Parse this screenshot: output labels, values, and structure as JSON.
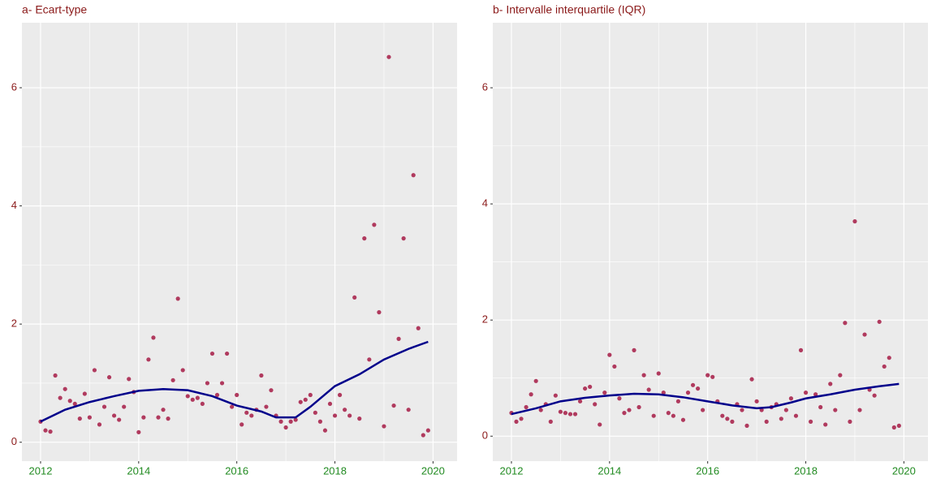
{
  "chart_data": [
    {
      "type": "scatter",
      "title": "a- Ecart-type",
      "x": [
        2012.0,
        2012.1,
        2012.2,
        2012.3,
        2012.4,
        2012.5,
        2012.6,
        2012.7,
        2012.8,
        2012.9,
        2013.0,
        2013.1,
        2013.2,
        2013.3,
        2013.4,
        2013.5,
        2013.6,
        2013.7,
        2013.8,
        2013.9,
        2014.0,
        2014.1,
        2014.2,
        2014.3,
        2014.4,
        2014.5,
        2014.6,
        2014.7,
        2014.8,
        2014.9,
        2015.0,
        2015.1,
        2015.2,
        2015.3,
        2015.4,
        2015.5,
        2015.6,
        2015.7,
        2015.8,
        2015.9,
        2016.0,
        2016.1,
        2016.2,
        2016.3,
        2016.4,
        2016.5,
        2016.6,
        2016.7,
        2016.8,
        2016.9,
        2017.0,
        2017.1,
        2017.2,
        2017.3,
        2017.4,
        2017.5,
        2017.6,
        2017.7,
        2017.8,
        2017.9,
        2018.0,
        2018.1,
        2018.2,
        2018.3,
        2018.4,
        2018.5,
        2018.6,
        2018.7,
        2018.8,
        2018.9,
        2019.0,
        2019.1,
        2019.2,
        2019.3,
        2019.4,
        2019.5,
        2019.6,
        2019.7,
        2019.8,
        2019.9
      ],
      "values": [
        0.35,
        0.2,
        0.18,
        1.13,
        0.75,
        0.9,
        0.7,
        0.65,
        0.4,
        0.82,
        0.42,
        1.22,
        0.3,
        0.6,
        1.1,
        0.45,
        0.38,
        0.6,
        1.07,
        0.85,
        0.17,
        0.42,
        1.4,
        1.77,
        0.42,
        0.55,
        0.4,
        1.05,
        2.43,
        1.22,
        0.78,
        0.72,
        0.75,
        0.65,
        1.0,
        1.5,
        0.8,
        1.0,
        1.5,
        0.6,
        0.8,
        0.3,
        0.5,
        0.45,
        0.55,
        1.13,
        0.6,
        0.88,
        0.45,
        0.35,
        0.25,
        0.35,
        0.38,
        0.68,
        0.72,
        0.8,
        0.5,
        0.35,
        0.2,
        0.65,
        0.45,
        0.8,
        0.55,
        0.45,
        2.45,
        0.4,
        3.45,
        1.4,
        3.68,
        2.2,
        0.27,
        6.52,
        0.62,
        1.75,
        3.45,
        0.55,
        4.52,
        1.93,
        0.12,
        0.2
      ],
      "color": "#b03a5e",
      "trend_x": [
        2012.0,
        2012.5,
        2013.0,
        2013.5,
        2014.0,
        2014.5,
        2015.0,
        2015.5,
        2016.0,
        2016.5,
        2016.8,
        2017.2,
        2017.5,
        2018.0,
        2018.5,
        2019.0,
        2019.5,
        2019.9
      ],
      "trend_values": [
        0.35,
        0.55,
        0.68,
        0.78,
        0.87,
        0.9,
        0.88,
        0.78,
        0.62,
        0.52,
        0.42,
        0.42,
        0.6,
        0.95,
        1.15,
        1.4,
        1.58,
        1.7
      ],
      "trend_color": "#00008b",
      "xlim": [
        2011.62,
        2020.49
      ],
      "ylim": [
        -0.32,
        7.1
      ],
      "xticks": [
        2012,
        2014,
        2016,
        2018,
        2020
      ],
      "yticks": [
        0,
        2,
        4,
        6
      ],
      "grid": true
    },
    {
      "type": "scatter",
      "title": "b- Intervalle interquartile (IQR)",
      "x": [
        2012.0,
        2012.1,
        2012.2,
        2012.3,
        2012.4,
        2012.5,
        2012.6,
        2012.7,
        2012.8,
        2012.9,
        2013.0,
        2013.1,
        2013.2,
        2013.3,
        2013.4,
        2013.5,
        2013.6,
        2013.7,
        2013.8,
        2013.9,
        2014.0,
        2014.1,
        2014.2,
        2014.3,
        2014.4,
        2014.5,
        2014.6,
        2014.7,
        2014.8,
        2014.9,
        2015.0,
        2015.1,
        2015.2,
        2015.3,
        2015.4,
        2015.5,
        2015.6,
        2015.7,
        2015.8,
        2015.9,
        2016.0,
        2016.1,
        2016.2,
        2016.3,
        2016.4,
        2016.5,
        2016.6,
        2016.7,
        2016.8,
        2016.9,
        2017.0,
        2017.1,
        2017.2,
        2017.3,
        2017.4,
        2017.5,
        2017.6,
        2017.7,
        2017.8,
        2017.9,
        2018.0,
        2018.1,
        2018.2,
        2018.3,
        2018.4,
        2018.5,
        2018.6,
        2018.7,
        2018.8,
        2018.9,
        2019.0,
        2019.1,
        2019.2,
        2019.3,
        2019.4,
        2019.5,
        2019.6,
        2019.7,
        2019.8,
        2019.9
      ],
      "values": [
        0.4,
        0.25,
        0.3,
        0.5,
        0.72,
        0.95,
        0.45,
        0.55,
        0.25,
        0.7,
        0.42,
        0.4,
        0.38,
        0.38,
        0.6,
        0.82,
        0.85,
        0.55,
        0.2,
        0.75,
        1.4,
        1.2,
        0.65,
        0.4,
        0.45,
        1.48,
        0.5,
        1.05,
        0.8,
        0.35,
        1.08,
        0.75,
        0.4,
        0.35,
        0.6,
        0.28,
        0.75,
        0.88,
        0.82,
        0.45,
        1.05,
        1.02,
        0.6,
        0.35,
        0.3,
        0.25,
        0.55,
        0.45,
        0.18,
        0.98,
        0.6,
        0.45,
        0.25,
        0.5,
        0.55,
        0.3,
        0.45,
        0.65,
        0.35,
        1.48,
        0.75,
        0.25,
        0.72,
        0.5,
        0.2,
        0.9,
        0.45,
        1.05,
        1.95,
        0.25,
        3.7,
        0.45,
        1.75,
        0.8,
        0.7,
        1.97,
        1.2,
        1.35,
        0.15,
        0.18
      ],
      "color": "#b03a5e",
      "trend_x": [
        2012.0,
        2012.5,
        2013.0,
        2013.5,
        2014.0,
        2014.5,
        2015.0,
        2015.5,
        2016.0,
        2016.5,
        2017.0,
        2017.3,
        2017.7,
        2018.0,
        2018.5,
        2019.0,
        2019.5,
        2019.9
      ],
      "trend_values": [
        0.38,
        0.48,
        0.6,
        0.66,
        0.7,
        0.73,
        0.72,
        0.67,
        0.6,
        0.53,
        0.48,
        0.5,
        0.58,
        0.65,
        0.72,
        0.8,
        0.86,
        0.9
      ],
      "trend_color": "#00008b",
      "xlim": [
        2011.62,
        2020.49
      ],
      "ylim": [
        -0.43,
        7.12
      ],
      "xticks": [
        2012,
        2014,
        2016,
        2018,
        2020
      ],
      "yticks": [
        0,
        2,
        4,
        6
      ],
      "grid": true
    }
  ]
}
